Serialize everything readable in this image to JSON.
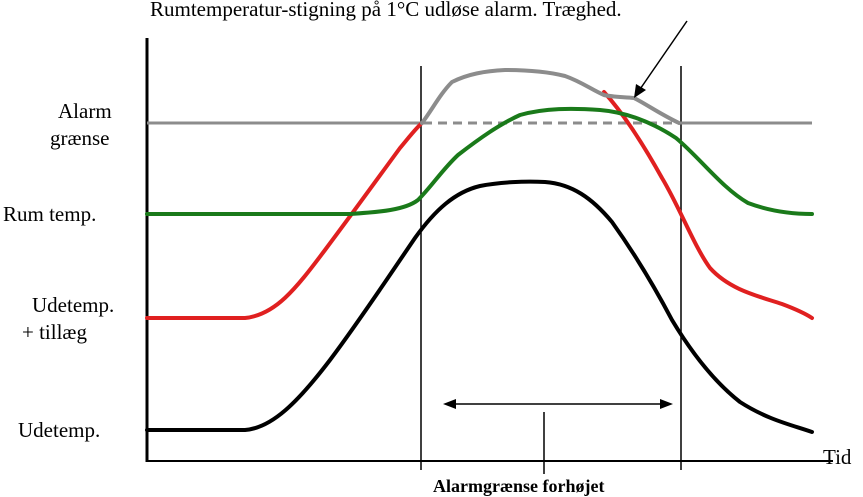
{
  "header_text": "Rumtemperatur-stigning på 1°C udløse alarm.     Træghed.",
  "labels": {
    "alarm_line1": "Alarm",
    "alarm_line2": "grænse",
    "room_temp": "Rum temp.",
    "outdoor_plus_line1": "Udetemp.",
    "outdoor_plus_line2": "+ tillæg",
    "outdoor_temp": "Udetemp.",
    "time_axis": "Tid",
    "raised_limit": "Alarmgrænse forhøjet"
  },
  "colors": {
    "axes": "#000000",
    "alarm_limit": "#8c8c8c",
    "room_temp": "#1a7a1a",
    "outdoor_plus": "#e02020",
    "outdoor_temp": "#000000"
  },
  "series": [
    {
      "name": "Alarm grænse",
      "role": "alarm-limit-curve",
      "color_key": "alarm_limit"
    },
    {
      "name": "Rum temp.",
      "role": "room-temp-curve",
      "color_key": "room_temp"
    },
    {
      "name": "Udetemp. + tillæg",
      "role": "outdoor-plus-curve",
      "color_key": "outdoor_plus"
    },
    {
      "name": "Udetemp.",
      "role": "outdoor-temp-curve",
      "color_key": "outdoor_temp"
    }
  ]
}
